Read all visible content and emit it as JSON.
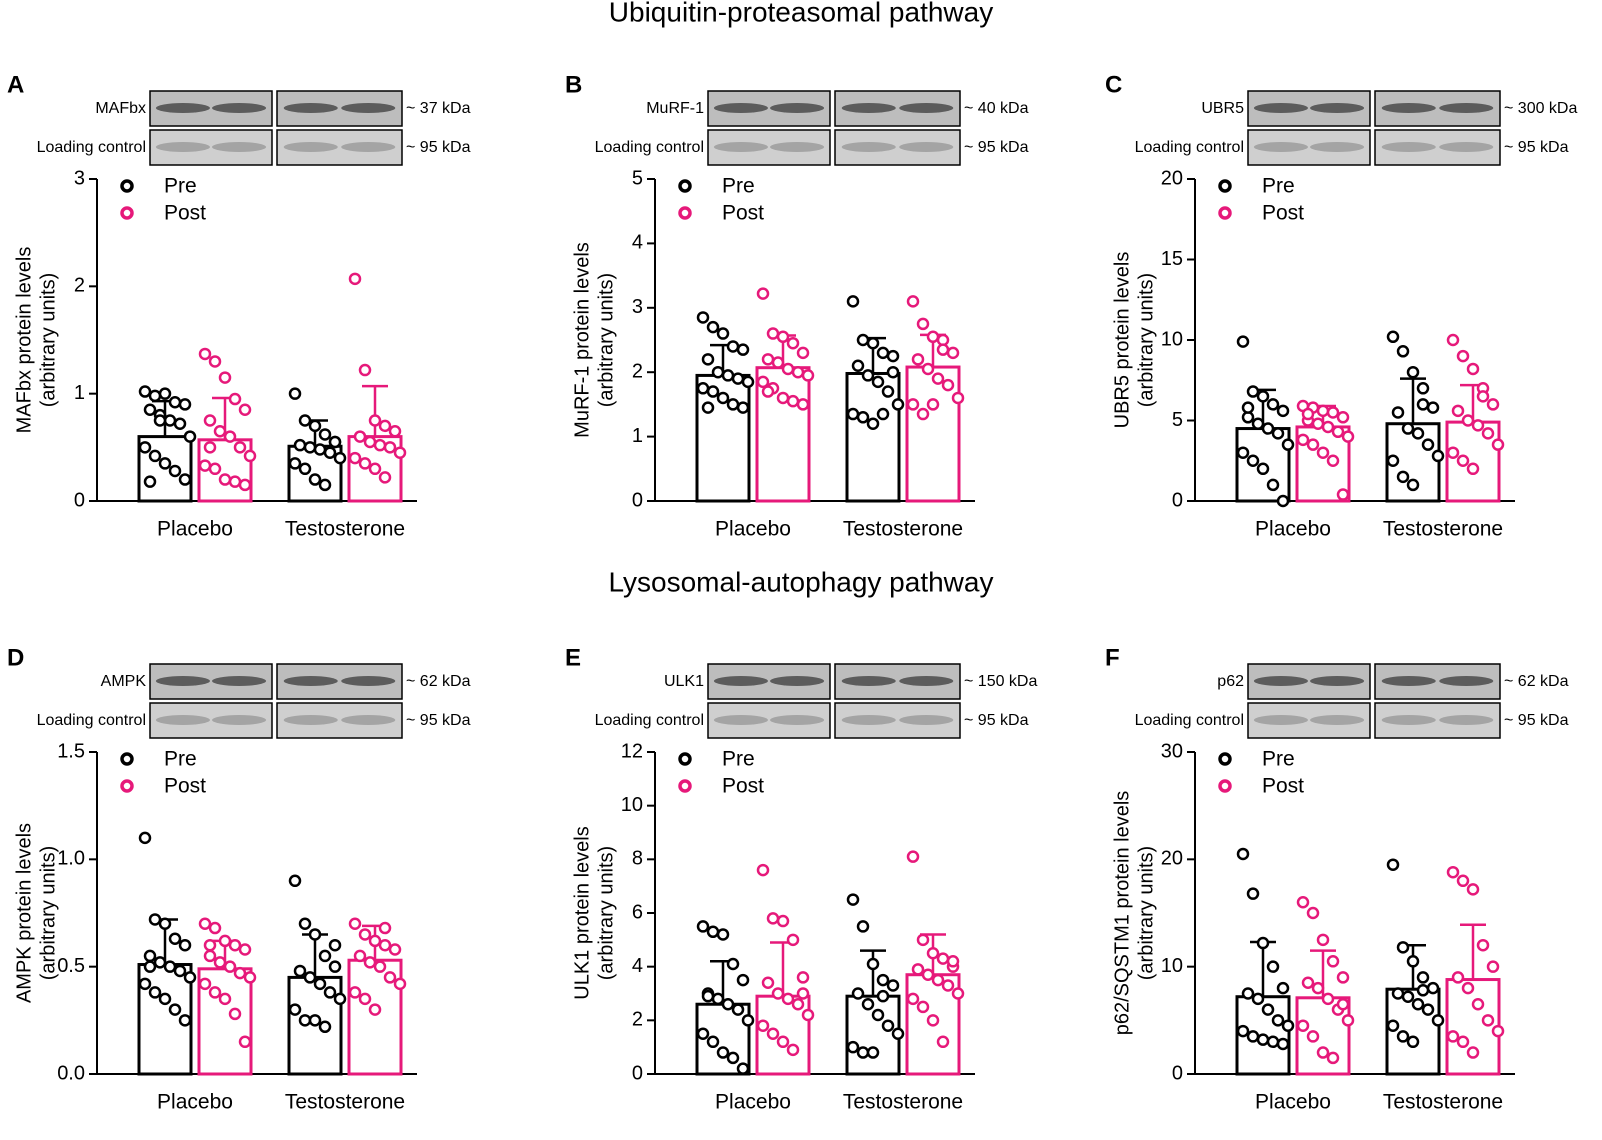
{
  "sections": [
    "Ubiquitin-proteasomal pathway",
    "Lysosomal-autophagy pathway"
  ],
  "chart_data": [
    {
      "type": "bar",
      "panel": "A",
      "ylabel": "MAFbx protein levels",
      "ylabel2": "(arbitrary units)",
      "blot": {
        "labels": [
          "MAFbx",
          "Loading control"
        ],
        "sizes": [
          "~ 37 kDa",
          "~ 95 kDa"
        ]
      },
      "categories": [
        "Placebo",
        "Testosterone"
      ],
      "ylim": [
        0,
        3
      ],
      "yticks": [
        0,
        1,
        2,
        3
      ],
      "series": [
        {
          "name": "Pre",
          "color": "#000000",
          "values": [
            0.6,
            0.51
          ],
          "errors": [
            0.33,
            0.24
          ],
          "points": [
            [
              1.02,
              0.98,
              1.0,
              0.92,
              0.9,
              0.85,
              0.8,
              0.75,
              0.72,
              0.6,
              0.5,
              0.42,
              0.35,
              0.28,
              0.2,
              0.18,
              0.75
            ],
            [
              1.0,
              0.75,
              0.7,
              0.62,
              0.55,
              0.52,
              0.5,
              0.48,
              0.45,
              0.4,
              0.35,
              0.3,
              0.2,
              0.15,
              0.55
            ]
          ]
        },
        {
          "name": "Post",
          "color": "#e6197a",
          "values": [
            0.57,
            0.6
          ],
          "errors": [
            0.39,
            0.47
          ],
          "points": [
            [
              1.37,
              1.3,
              1.15,
              0.95,
              0.85,
              0.75,
              0.65,
              0.6,
              0.5,
              0.42,
              0.33,
              0.3,
              0.2,
              0.18,
              0.15,
              0.5
            ],
            [
              2.07,
              1.22,
              0.75,
              0.7,
              0.65,
              0.6,
              0.55,
              0.52,
              0.5,
              0.45,
              0.4,
              0.35,
              0.3,
              0.22
            ]
          ]
        }
      ]
    },
    {
      "type": "bar",
      "panel": "B",
      "ylabel": "MuRF-1 protein levels",
      "ylabel2": "(arbitrary units)",
      "blot": {
        "labels": [
          "MuRF-1",
          "Loading control"
        ],
        "sizes": [
          "~ 40 kDa",
          "~ 95 kDa"
        ]
      },
      "categories": [
        "Placebo",
        "Testosterone"
      ],
      "ylim": [
        0,
        5
      ],
      "yticks": [
        0,
        1,
        2,
        3,
        4,
        5
      ],
      "series": [
        {
          "name": "Pre",
          "color": "#000000",
          "values": [
            1.95,
            1.98
          ],
          "errors": [
            0.47,
            0.55
          ],
          "points": [
            [
              2.85,
              2.7,
              2.6,
              2.4,
              2.35,
              2.2,
              2.0,
              1.95,
              1.9,
              1.85,
              1.75,
              1.7,
              1.6,
              1.5,
              1.45,
              1.45
            ],
            [
              3.1,
              2.5,
              2.45,
              2.3,
              2.25,
              2.1,
              1.95,
              1.85,
              1.7,
              1.5,
              1.35,
              1.3,
              1.2,
              1.35,
              2.0
            ]
          ]
        },
        {
          "name": "Post",
          "color": "#e6197a",
          "values": [
            2.07,
            2.08
          ],
          "errors": [
            0.5,
            0.5
          ],
          "points": [
            [
              3.22,
              2.6,
              2.55,
              2.45,
              2.3,
              2.2,
              2.15,
              2.05,
              2.0,
              1.95,
              1.85,
              1.75,
              1.6,
              1.55,
              1.5,
              1.7
            ],
            [
              3.1,
              2.75,
              2.55,
              2.5,
              2.3,
              2.2,
              2.05,
              1.9,
              1.8,
              1.6,
              1.5,
              1.35,
              1.5,
              2.35
            ]
          ]
        }
      ]
    },
    {
      "type": "bar",
      "panel": "C",
      "ylabel": "UBR5 protein levels",
      "ylabel2": "(arbitrary units)",
      "blot": {
        "labels": [
          "UBR5",
          "Loading control"
        ],
        "sizes": [
          "~ 300 kDa",
          "~ 95 kDa"
        ]
      },
      "categories": [
        "Placebo",
        "Testosterone"
      ],
      "ylim": [
        0,
        20
      ],
      "yticks": [
        0,
        5,
        10,
        15,
        20
      ],
      "series": [
        {
          "name": "Pre",
          "color": "#000000",
          "values": [
            4.5,
            4.8
          ],
          "errors": [
            2.4,
            2.8
          ],
          "points": [
            [
              9.9,
              6.8,
              6.5,
              6.0,
              5.6,
              5.2,
              4.8,
              4.5,
              4.2,
              3.5,
              3.0,
              2.5,
              2.0,
              1.0,
              0.0,
              5.8
            ],
            [
              10.2,
              9.3,
              8.0,
              7.0,
              5.8,
              5.5,
              4.5,
              4.2,
              3.5,
              2.8,
              2.5,
              1.5,
              1.0,
              6.0
            ]
          ]
        },
        {
          "name": "Post",
          "color": "#e6197a",
          "values": [
            4.6,
            4.9
          ],
          "errors": [
            1.3,
            2.3
          ],
          "points": [
            [
              5.9,
              5.8,
              5.6,
              5.5,
              5.2,
              5.0,
              4.8,
              4.6,
              4.3,
              4.0,
              3.8,
              3.5,
              3.0,
              2.5,
              0.4,
              5.4
            ],
            [
              10.0,
              9.0,
              8.2,
              7.0,
              6.0,
              5.6,
              5.0,
              4.7,
              4.2,
              3.5,
              3.0,
              2.5,
              2.0,
              6.5
            ]
          ]
        }
      ]
    },
    {
      "type": "bar",
      "panel": "D",
      "ylabel": "AMPK protein levels",
      "ylabel2": "(arbitrary units)",
      "blot": {
        "labels": [
          "AMPK",
          "Loading control"
        ],
        "sizes": [
          "~ 62 kDa",
          "~ 95 kDa"
        ]
      },
      "categories": [
        "Placebo",
        "Testosterone"
      ],
      "ylim": [
        0,
        1.5
      ],
      "yticks": [
        {
          "value": 0,
          "label": "0.0"
        },
        0.5,
        {
          "value": 1,
          "label": "1.0"
        },
        1.5
      ],
      "series": [
        {
          "name": "Pre",
          "color": "#000000",
          "values": [
            0.51,
            0.45
          ],
          "errors": [
            0.21,
            0.2
          ],
          "points": [
            [
              1.1,
              0.72,
              0.7,
              0.63,
              0.6,
              0.55,
              0.52,
              0.5,
              0.48,
              0.45,
              0.42,
              0.38,
              0.35,
              0.3,
              0.25,
              0.5
            ],
            [
              0.9,
              0.7,
              0.65,
              0.55,
              0.5,
              0.48,
              0.45,
              0.42,
              0.38,
              0.35,
              0.3,
              0.25,
              0.25,
              0.22,
              0.6
            ]
          ]
        },
        {
          "name": "Post",
          "color": "#e6197a",
          "values": [
            0.49,
            0.53
          ],
          "errors": [
            0.13,
            0.16
          ],
          "points": [
            [
              0.7,
              0.68,
              0.62,
              0.6,
              0.58,
              0.55,
              0.52,
              0.5,
              0.47,
              0.45,
              0.42,
              0.38,
              0.35,
              0.28,
              0.15,
              0.6
            ],
            [
              0.7,
              0.65,
              0.62,
              0.6,
              0.58,
              0.55,
              0.52,
              0.5,
              0.45,
              0.42,
              0.38,
              0.35,
              0.3,
              0.68
            ]
          ]
        }
      ]
    },
    {
      "type": "bar",
      "panel": "E",
      "ylabel": "ULK1 protein levels",
      "ylabel2": "(arbitrary units)",
      "blot": {
        "labels": [
          "ULK1",
          "Loading control"
        ],
        "sizes": [
          "~ 150 kDa",
          "~ 95 kDa"
        ]
      },
      "categories": [
        "Placebo",
        "Testosterone"
      ],
      "ylim": [
        0,
        12
      ],
      "yticks": [
        0,
        2,
        4,
        6,
        8,
        10,
        12
      ],
      "series": [
        {
          "name": "Pre",
          "color": "#000000",
          "values": [
            2.6,
            2.9
          ],
          "errors": [
            1.6,
            1.7
          ],
          "points": [
            [
              5.5,
              5.3,
              5.2,
              4.1,
              3.5,
              3.0,
              2.8,
              2.6,
              2.4,
              2.0,
              1.5,
              1.2,
              0.8,
              0.6,
              0.2,
              2.9
            ],
            [
              6.5,
              5.5,
              4.1,
              3.5,
              3.3,
              3.0,
              2.6,
              2.2,
              1.8,
              1.5,
              1.0,
              0.8,
              0.8,
              2.9
            ]
          ]
        },
        {
          "name": "Post",
          "color": "#e6197a",
          "values": [
            2.9,
            3.7
          ],
          "errors": [
            2.0,
            1.5
          ],
          "points": [
            [
              7.6,
              5.8,
              5.7,
              5.0,
              3.6,
              3.4,
              3.0,
              2.8,
              2.6,
              2.2,
              1.8,
              1.5,
              1.2,
              0.9,
              3.0
            ],
            [
              8.1,
              5.0,
              4.5,
              4.3,
              4.0,
              3.9,
              3.7,
              3.5,
              3.3,
              3.0,
              2.8,
              2.5,
              2.0,
              1.2,
              4.2
            ]
          ]
        }
      ]
    },
    {
      "type": "bar",
      "panel": "F",
      "ylabel": "p62/SQSTM1 protein levels",
      "ylabel2": "(arbitrary units)",
      "blot": {
        "labels": [
          "p62",
          "Loading control"
        ],
        "sizes": [
          "~ 62 kDa",
          "~ 95 kDa"
        ]
      },
      "categories": [
        "Placebo",
        "Testosterone"
      ],
      "ylim": [
        0,
        30
      ],
      "yticks": [
        0,
        10,
        20,
        30
      ],
      "series": [
        {
          "name": "Pre",
          "color": "#000000",
          "values": [
            7.2,
            7.9
          ],
          "errors": [
            5.1,
            4.1
          ],
          "points": [
            [
              20.5,
              16.8,
              12.2,
              10.0,
              8.0,
              7.5,
              7.0,
              6.0,
              5.0,
              4.5,
              4.0,
              3.5,
              3.2,
              3.0,
              2.8
            ],
            [
              19.5,
              11.8,
              10.5,
              9.0,
              8.0,
              7.5,
              7.2,
              6.5,
              6.0,
              5.0,
              4.5,
              3.5,
              3.0,
              7.8
            ]
          ]
        },
        {
          "name": "Post",
          "color": "#e6197a",
          "values": [
            7.1,
            8.8
          ],
          "errors": [
            4.4,
            5.1
          ],
          "points": [
            [
              16,
              15,
              12.5,
              10.5,
              9.0,
              8.5,
              8.0,
              7.0,
              6.0,
              5.0,
              4.5,
              3.5,
              2.0,
              1.5,
              6.5
            ],
            [
              18.8,
              18.0,
              17.2,
              12.0,
              10.0,
              9.0,
              8.0,
              6.5,
              5.0,
              4.0,
              3.5,
              3.0,
              2.0
            ]
          ]
        }
      ]
    }
  ]
}
